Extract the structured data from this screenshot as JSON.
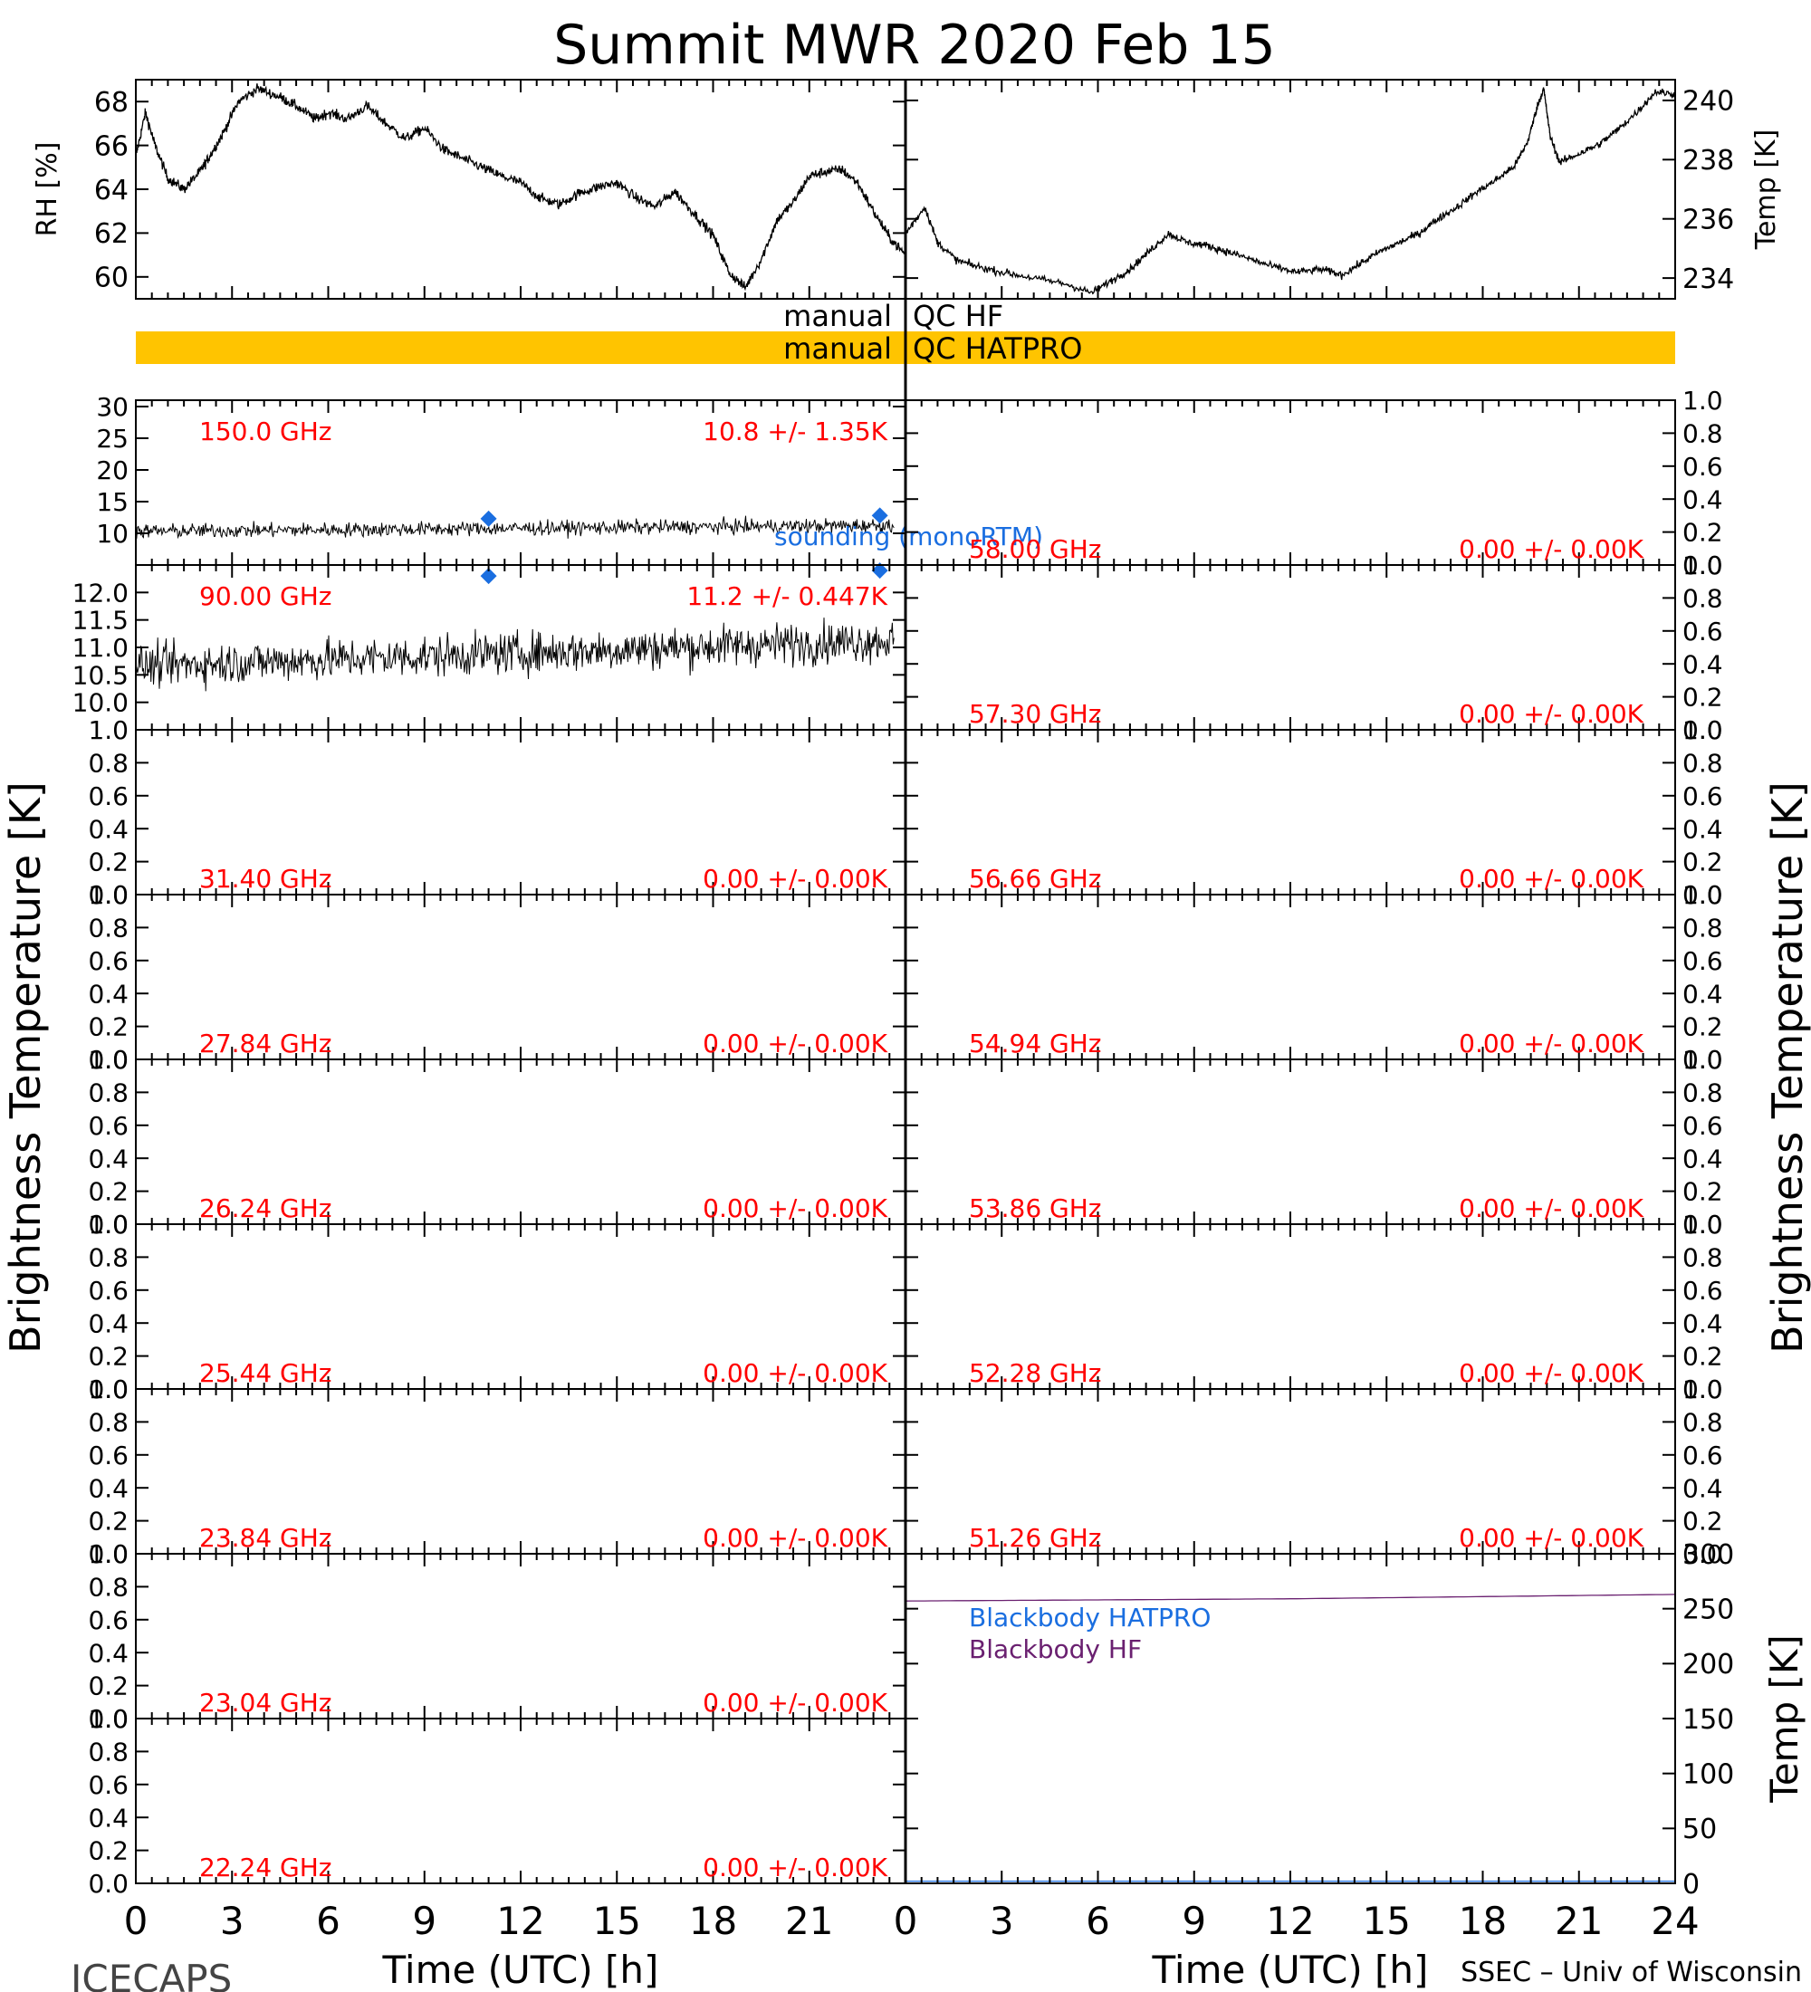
{
  "title": "Summit MWR 2020 Feb 15",
  "footer_left": "ICECAPS",
  "footer_right": "SSEC – Univ of Wisconsin",
  "colors": {
    "qc_bar": "#ffc400",
    "label_red": "#ff0000",
    "sounding_blue": "#1a6ee0",
    "blackbody_hf": "#6a2070",
    "blackbody_hatpro": "#1a6ee0",
    "trace": "#000000"
  },
  "chart_data": {
    "type": "line",
    "xlim": [
      0,
      24
    ],
    "x_ticks": [
      "0",
      "3",
      "6",
      "9",
      "12",
      "15",
      "18",
      "21",
      "24"
    ],
    "left_x_ticks": [
      "0",
      "3",
      "6",
      "9",
      "12",
      "15",
      "18",
      "21"
    ],
    "right_x_ticks": [
      "0",
      "3",
      "6",
      "9",
      "12",
      "15",
      "18",
      "21",
      "24"
    ],
    "xlabel": "Time (UTC) [h]",
    "rh": {
      "ylabel": "RH [%]",
      "ylim": [
        59,
        69
      ],
      "yticks": [
        "60",
        "62",
        "64",
        "66",
        "68"
      ],
      "x": [
        0,
        0.3,
        0.6,
        1.0,
        1.5,
        2.0,
        2.3,
        2.7,
        3.2,
        3.8,
        4.5,
        5.0,
        5.6,
        6.0,
        6.6,
        7.2,
        7.8,
        8.4,
        9.0,
        9.6,
        10.2,
        10.8,
        11.4,
        12.0,
        12.6,
        13.2,
        13.8,
        14.4,
        15.0,
        15.6,
        16.2,
        16.8,
        17.4,
        18.0,
        18.5,
        19.0,
        19.5,
        20.0,
        20.5,
        21.0,
        21.5,
        22.0,
        22.5,
        23.0,
        23.5,
        24.0
      ],
      "y": [
        65.5,
        67.5,
        66.0,
        64.5,
        64.0,
        64.8,
        65.5,
        66.5,
        68.0,
        68.6,
        68.2,
        67.8,
        67.2,
        67.5,
        67.2,
        67.8,
        67.0,
        66.3,
        66.8,
        65.8,
        65.4,
        65.0,
        64.6,
        64.3,
        63.6,
        63.3,
        63.8,
        64.1,
        64.3,
        63.6,
        63.2,
        63.9,
        62.9,
        61.9,
        60.2,
        59.5,
        60.8,
        62.6,
        63.4,
        64.6,
        64.8,
        64.9,
        64.3,
        63.0,
        61.8,
        61.0
      ]
    },
    "temp_top": {
      "ylabel": "Temp [K]",
      "ylim": [
        233.3,
        240.7
      ],
      "yticks": [
        "234",
        "236",
        "238",
        "240"
      ],
      "x": [
        0,
        0.6,
        1.0,
        1.6,
        2.2,
        3.0,
        4.0,
        5.0,
        5.8,
        6.4,
        7.0,
        7.6,
        8.2,
        8.8,
        9.4,
        10.0,
        10.6,
        11.4,
        12.2,
        13.0,
        13.6,
        14.2,
        14.8,
        15.4,
        16.0,
        16.6,
        17.2,
        17.8,
        18.4,
        19.0,
        19.4,
        19.7,
        19.9,
        20.1,
        20.4,
        21.0,
        21.6,
        22.2,
        22.8,
        23.4,
        24.0
      ],
      "y": [
        235.5,
        236.4,
        235.2,
        234.6,
        234.4,
        234.2,
        234.0,
        233.8,
        233.5,
        233.9,
        234.3,
        234.9,
        235.5,
        235.2,
        235.1,
        234.9,
        234.7,
        234.4,
        234.2,
        234.3,
        234.1,
        234.5,
        234.9,
        235.2,
        235.5,
        236.0,
        236.4,
        236.9,
        237.3,
        237.8,
        238.6,
        239.8,
        240.4,
        238.8,
        237.9,
        238.2,
        238.5,
        239.0,
        239.6,
        240.3,
        240.2
      ]
    },
    "qc_bars": [
      {
        "label_left": "manual",
        "label_right": "QC HF",
        "filled": false
      },
      {
        "label_left": "manual",
        "label_right": "QC HATPRO",
        "filled": true
      }
    ],
    "ylabel_channels": "Brightness Temperature [K]",
    "left_channels": [
      {
        "freq": "150.0 GHz",
        "stat": "10.8 +/-  1.35K",
        "ylim": [
          5,
          31
        ],
        "yticks": [
          "10",
          "15",
          "20",
          "25",
          "30"
        ],
        "base": 10.8,
        "slope": 0.1,
        "noise": 1.35,
        "sounding": [
          [
            11,
            12.3
          ],
          [
            23.2,
            12.8
          ]
        ],
        "sounding_label": "sounding (monoRTM)"
      },
      {
        "freq": "90.00 GHz",
        "stat": "11.2 +/-  0.447K",
        "ylim": [
          9.5,
          12.5
        ],
        "yticks": [
          "10.0",
          "10.5",
          "11.0",
          "11.5",
          "12.0"
        ],
        "base": 10.9,
        "slope": 0.05,
        "noise": 0.45,
        "sounding": [
          [
            11,
            12.3
          ],
          [
            23.2,
            12.4
          ]
        ]
      },
      {
        "freq": "31.40 GHz",
        "stat": "0.00 +/-  0.00K",
        "ylim": [
          0,
          1
        ],
        "yticks": [
          "0.0",
          "0.2",
          "0.4",
          "0.6",
          "0.8",
          "1.0"
        ]
      },
      {
        "freq": "27.84 GHz",
        "stat": "0.00 +/-  0.00K",
        "ylim": [
          0,
          1
        ],
        "yticks": [
          "0.0",
          "0.2",
          "0.4",
          "0.6",
          "0.8",
          "1.0"
        ]
      },
      {
        "freq": "26.24 GHz",
        "stat": "0.00 +/-  0.00K",
        "ylim": [
          0,
          1
        ],
        "yticks": [
          "0.0",
          "0.2",
          "0.4",
          "0.6",
          "0.8",
          "1.0"
        ]
      },
      {
        "freq": "25.44 GHz",
        "stat": "0.00 +/-  0.00K",
        "ylim": [
          0,
          1
        ],
        "yticks": [
          "0.0",
          "0.2",
          "0.4",
          "0.6",
          "0.8",
          "1.0"
        ]
      },
      {
        "freq": "23.84 GHz",
        "stat": "0.00 +/-  0.00K",
        "ylim": [
          0,
          1
        ],
        "yticks": [
          "0.0",
          "0.2",
          "0.4",
          "0.6",
          "0.8",
          "1.0"
        ]
      },
      {
        "freq": "23.04 GHz",
        "stat": "0.00 +/-  0.00K",
        "ylim": [
          0,
          1
        ],
        "yticks": [
          "0.0",
          "0.2",
          "0.4",
          "0.6",
          "0.8",
          "1.0"
        ]
      },
      {
        "freq": "22.24 GHz",
        "stat": "0.00 +/-  0.00K",
        "ylim": [
          0,
          1
        ],
        "yticks": [
          "0.0",
          "0.2",
          "0.4",
          "0.6",
          "0.8",
          "1.0"
        ]
      }
    ],
    "right_channels": [
      {
        "freq": "58.00 GHz",
        "stat": "0.00 +/-  0.00K",
        "ylim": [
          0,
          1
        ],
        "yticks": [
          "0.0",
          "0.2",
          "0.4",
          "0.6",
          "0.8",
          "1.0"
        ]
      },
      {
        "freq": "57.30 GHz",
        "stat": "0.00 +/-  0.00K",
        "ylim": [
          0,
          1
        ],
        "yticks": [
          "0.0",
          "0.2",
          "0.4",
          "0.6",
          "0.8",
          "1.0"
        ]
      },
      {
        "freq": "56.66 GHz",
        "stat": "0.00 +/-  0.00K",
        "ylim": [
          0,
          1
        ],
        "yticks": [
          "0.0",
          "0.2",
          "0.4",
          "0.6",
          "0.8",
          "1.0"
        ]
      },
      {
        "freq": "54.94 GHz",
        "stat": "0.00 +/-  0.00K",
        "ylim": [
          0,
          1
        ],
        "yticks": [
          "0.0",
          "0.2",
          "0.4",
          "0.6",
          "0.8",
          "1.0"
        ]
      },
      {
        "freq": "53.86 GHz",
        "stat": "0.00 +/-  0.00K",
        "ylim": [
          0,
          1
        ],
        "yticks": [
          "0.0",
          "0.2",
          "0.4",
          "0.6",
          "0.8",
          "1.0"
        ]
      },
      {
        "freq": "52.28 GHz",
        "stat": "0.00 +/-  0.00K",
        "ylim": [
          0,
          1
        ],
        "yticks": [
          "0.0",
          "0.2",
          "0.4",
          "0.6",
          "0.8",
          "1.0"
        ]
      },
      {
        "freq": "51.26 GHz",
        "stat": "0.00 +/-  0.00K",
        "ylim": [
          0,
          1
        ],
        "yticks": [
          "0.0",
          "0.2",
          "0.4",
          "0.6",
          "0.8",
          "1.0"
        ]
      }
    ],
    "blackbody": {
      "ylabel": "Temp [K]",
      "ylim": [
        0,
        300
      ],
      "yticks": [
        "0",
        "50",
        "100",
        "150",
        "200",
        "250",
        "300"
      ],
      "legend": [
        "Blackbody HATPRO",
        "Blackbody HF"
      ],
      "hf": {
        "x": [
          0,
          6,
          12,
          18,
          24
        ],
        "y": [
          257,
          258,
          259,
          261,
          263
        ]
      },
      "hatpro": {
        "x": [
          0,
          24
        ],
        "y": [
          2,
          2
        ]
      }
    }
  }
}
